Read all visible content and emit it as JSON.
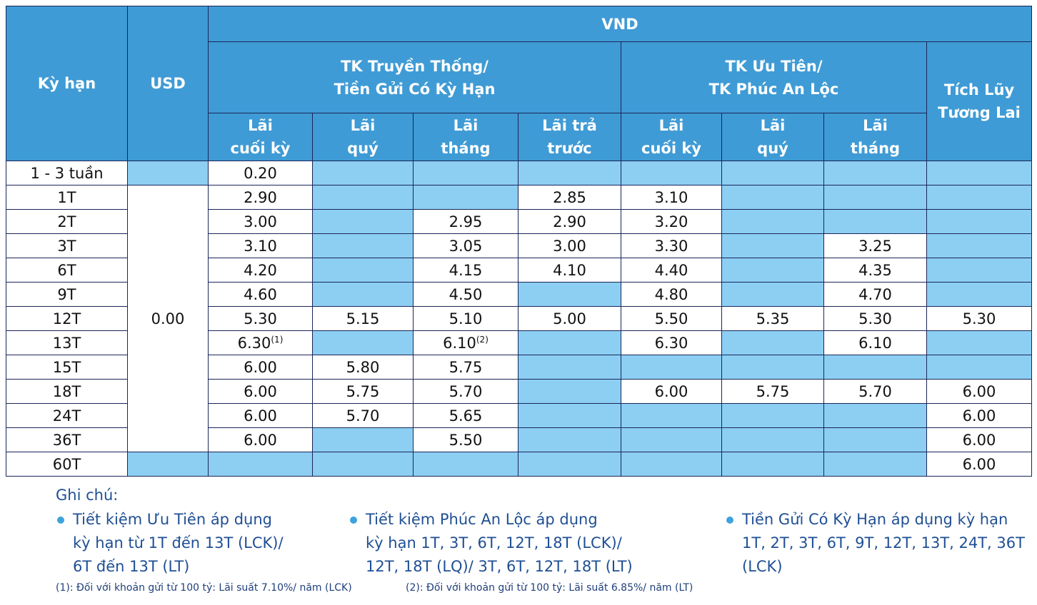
{
  "table": {
    "header": {
      "term": "Kỳ hạn",
      "usd": "USD",
      "vnd": "VND",
      "groups": [
        [
          "TK Truyền Thống/",
          "Tiền Gửi Có Kỳ Hạn"
        ],
        [
          "TK Ưu Tiên/",
          "TK Phúc An Lộc"
        ],
        [
          "Tích Lũy",
          "Tương Lai"
        ]
      ],
      "subheaders": [
        [
          "Lãi",
          "cuối kỳ"
        ],
        [
          "Lãi",
          "quý"
        ],
        [
          "Lãi",
          "tháng"
        ],
        [
          "Lãi trả",
          "trước"
        ],
        [
          "Lãi",
          "cuối kỳ"
        ],
        [
          "Lãi",
          "quý"
        ],
        [
          "Lãi",
          "tháng"
        ]
      ]
    },
    "rows": [
      {
        "term": "1 - 3 tuần",
        "usd": null,
        "cells": [
          "0.20",
          null,
          null,
          null,
          null,
          null,
          null,
          null
        ]
      },
      {
        "term": "1T",
        "usd": "0.00",
        "cells": [
          "2.90",
          null,
          null,
          "2.85",
          "3.10",
          null,
          null,
          null
        ]
      },
      {
        "term": "2T",
        "cells": [
          "3.00",
          null,
          "2.95",
          "2.90",
          "3.20",
          null,
          null,
          null
        ]
      },
      {
        "term": "3T",
        "cells": [
          "3.10",
          null,
          "3.05",
          "3.00",
          "3.30",
          null,
          "3.25",
          null
        ]
      },
      {
        "term": "6T",
        "cells": [
          "4.20",
          null,
          "4.15",
          "4.10",
          "4.40",
          null,
          "4.35",
          null
        ]
      },
      {
        "term": "9T",
        "cells": [
          "4.60",
          null,
          "4.50",
          null,
          "4.80",
          null,
          "4.70",
          null
        ]
      },
      {
        "term": "12T",
        "cells": [
          "5.30",
          "5.15",
          "5.10",
          "5.00",
          "5.50",
          "5.35",
          "5.30",
          "5.30"
        ]
      },
      {
        "term": "13T",
        "cells": [
          {
            "value": "6.30",
            "note": "(1)"
          },
          null,
          {
            "value": "6.10",
            "note": "(2)"
          },
          null,
          "6.30",
          null,
          "6.10",
          null
        ]
      },
      {
        "term": "15T",
        "cells": [
          "6.00",
          "5.80",
          "5.75",
          null,
          null,
          null,
          null,
          null
        ]
      },
      {
        "term": "18T",
        "cells": [
          "6.00",
          "5.75",
          "5.70",
          null,
          "6.00",
          "5.75",
          "5.70",
          "6.00"
        ]
      },
      {
        "term": "24T",
        "cells": [
          "6.00",
          "5.70",
          "5.65",
          null,
          null,
          null,
          null,
          "6.00"
        ]
      },
      {
        "term": "36T",
        "cells": [
          "6.00",
          null,
          "5.50",
          null,
          null,
          null,
          null,
          "6.00"
        ]
      },
      {
        "term": "60T",
        "usd": null,
        "cells": [
          null,
          null,
          null,
          null,
          null,
          null,
          null,
          "6.00"
        ]
      }
    ]
  },
  "notes": {
    "title": "Ghi chú:",
    "items": [
      [
        "Tiết kiệm Ưu Tiên áp dụng",
        "kỳ hạn từ 1T đến 13T (LCK)/",
        "6T đến 13T (LT)"
      ],
      [
        "Tiết kiệm Phúc An Lộc áp dụng",
        "kỳ hạn 1T, 3T, 6T, 12T, 18T (LCK)/",
        "12T, 18T (LQ)/ 3T, 6T, 12T, 18T (LT)"
      ],
      [
        "Tiền Gửi Có Kỳ Hạn áp dụng kỳ hạn",
        "1T, 2T, 3T, 6T, 9T, 12T, 13T, 24T, 36T",
        "(LCK)"
      ]
    ],
    "footnotes": [
      "(1): Đối với khoản gửi từ 100 tỷ: Lãi suất 7.10%/ năm (LCK)",
      "(2): Đối với khoản gửi từ 100 tỷ: Lãi suất 6.85%/ năm (LT)"
    ]
  }
}
